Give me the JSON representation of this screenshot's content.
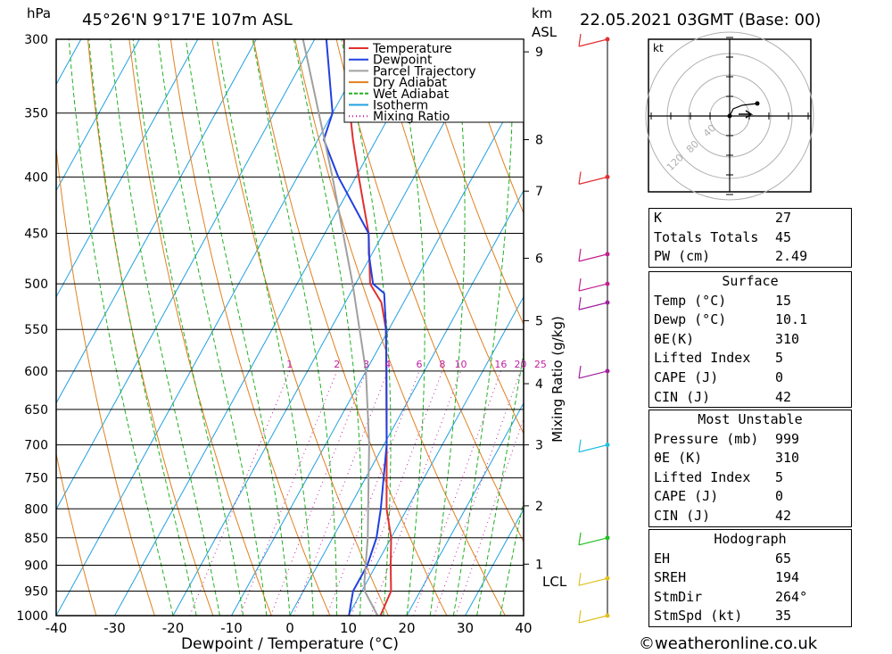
{
  "header": {
    "location": "45°26'N  9°17'E  107m  ASL",
    "datetime": "22.05.2021  03GMT  (Base: 00)",
    "hpa_label": "hPa",
    "km_label": "km",
    "asl_label": "ASL"
  },
  "chart_data": {
    "type": "skew-t",
    "xlabel": "Dewpoint / Temperature (°C)",
    "ylabel_right": "Mixing Ratio (g/kg)",
    "x_ticks": [
      "-40",
      "-30",
      "-20",
      "-10",
      "0",
      "10",
      "20",
      "30",
      "40"
    ],
    "pressure_ticks": [
      "300",
      "350",
      "400",
      "450",
      "500",
      "550",
      "600",
      "650",
      "700",
      "750",
      "800",
      "850",
      "900",
      "950",
      "1000"
    ],
    "km_ticks": [
      "9",
      "8",
      "7",
      "6",
      "5",
      "4",
      "3",
      "2",
      "1"
    ],
    "lcl_label": "LCL",
    "mixing_ratio_labels": [
      "1",
      "2",
      "3",
      "4",
      "6",
      "8",
      "10",
      "16",
      "20",
      "25"
    ],
    "legend": [
      "Temperature",
      "Dewpoint",
      "Parcel Trajectory",
      "Dry Adiabat",
      "Wet Adiabat",
      "Isotherm",
      "Mixing Ratio"
    ],
    "colors": {
      "temperature": "#e03030",
      "dewpoint": "#2040e0",
      "parcel": "#a0a0a0",
      "dry_adiabat": "#e08020",
      "wet_adiabat": "#20b020",
      "isotherm": "#20a0e0",
      "mixing_ratio": "#c020a0"
    },
    "series": [
      {
        "name": "Temperature",
        "points": [
          [
            1000,
            15.5
          ],
          [
            950,
            15.0
          ],
          [
            900,
            12.5
          ],
          [
            850,
            10.0
          ],
          [
            800,
            6.5
          ],
          [
            700,
            0.5
          ],
          [
            600,
            -6.5
          ],
          [
            550,
            -10.5
          ],
          [
            520,
            -13.8
          ],
          [
            500,
            -17.5
          ],
          [
            450,
            -22.5
          ],
          [
            400,
            -29.5
          ],
          [
            370,
            -34.0
          ],
          [
            350,
            -37.0
          ],
          [
            300,
            -45.0
          ]
        ]
      },
      {
        "name": "Dewpoint",
        "points": [
          [
            1000,
            10.1
          ],
          [
            950,
            8.5
          ],
          [
            900,
            8.5
          ],
          [
            850,
            7.5
          ],
          [
            800,
            5.5
          ],
          [
            700,
            0.5
          ],
          [
            600,
            -6.5
          ],
          [
            550,
            -10.5
          ],
          [
            510,
            -14.2
          ],
          [
            500,
            -17.0
          ],
          [
            470,
            -20.5
          ],
          [
            450,
            -22.5
          ],
          [
            400,
            -33.0
          ],
          [
            370,
            -39.0
          ],
          [
            350,
            -40.0
          ],
          [
            300,
            -48.0
          ]
        ]
      },
      {
        "name": "Parcel Trajectory",
        "points": [
          [
            1000,
            15.0
          ],
          [
            950,
            10.5
          ],
          [
            930,
            9.5
          ],
          [
            850,
            6.0
          ],
          [
            750,
            0.5
          ],
          [
            700,
            -2.5
          ],
          [
            600,
            -10.0
          ],
          [
            500,
            -20.5
          ],
          [
            400,
            -34.0
          ],
          [
            300,
            -52.0
          ]
        ]
      }
    ]
  },
  "hodograph": {
    "unit_label": "kt",
    "ring_labels": [
      "40",
      "80",
      "120"
    ]
  },
  "indices": {
    "k_label": "K",
    "k": "27",
    "tt_label": "Totals Totals",
    "tt": "45",
    "pw_label": "PW (cm)",
    "pw": "2.49"
  },
  "surface": {
    "title": "Surface",
    "temp_label": "Temp (°C)",
    "temp": "15",
    "dewp_label": "Dewp (°C)",
    "dewp": "10.1",
    "thetae_label": "θE(K)",
    "thetae": "310",
    "li_label": "Lifted Index",
    "li": "5",
    "cape_label": "CAPE (J)",
    "cape": "0",
    "cin_label": "CIN (J)",
    "cin": "42"
  },
  "most_unstable": {
    "title": "Most Unstable",
    "pressure_label": "Pressure (mb)",
    "pressure": "999",
    "thetae_label": "θE (K)",
    "thetae": "310",
    "li_label": "Lifted Index",
    "li": "5",
    "cape_label": "CAPE (J)",
    "cape": "0",
    "cin_label": "CIN (J)",
    "cin": "42"
  },
  "hodograph_stats": {
    "title": "Hodograph",
    "eh_label": "EH",
    "eh": "65",
    "sreh_label": "SREH",
    "sreh": "194",
    "stmdir_label": "StmDir",
    "stmdir": "264°",
    "stmspd_label": "StmSpd (kt)",
    "stmspd": "35"
  },
  "footer": "©weatheronline.co.uk"
}
